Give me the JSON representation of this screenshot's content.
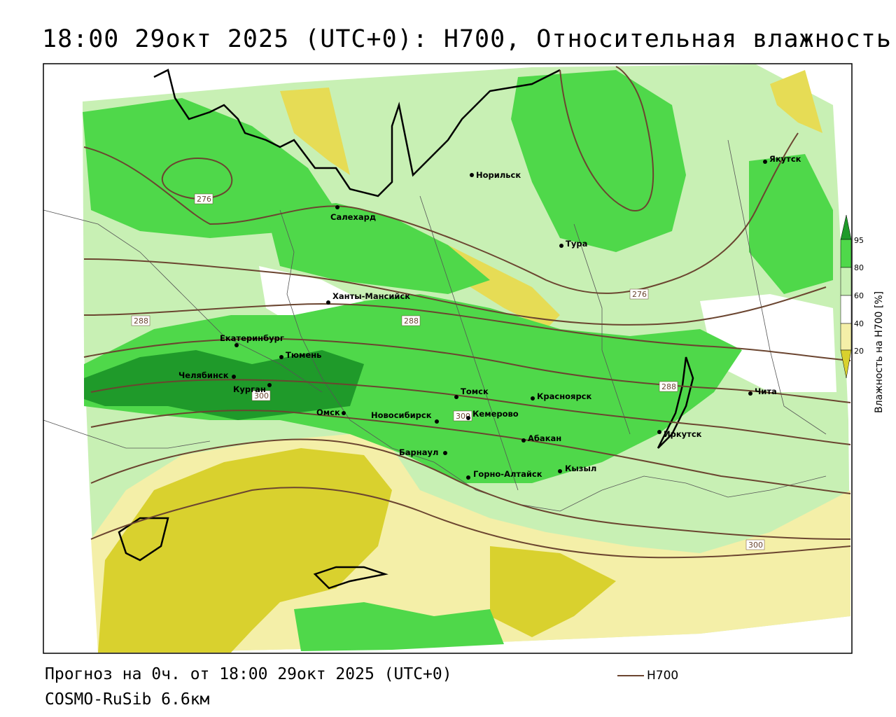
{
  "title": "18:00 29окт 2025 (UTC+0): H700, Относительная влажность",
  "footer": {
    "forecast": "Прогноз на 0ч. от 18:00 29окт 2025 (UTC+0)",
    "model": "COSMO-RuSib 6.6км"
  },
  "legend": {
    "line_label": "H700",
    "line_color": "#6b4530"
  },
  "colorbar": {
    "title": "Влажность на H700 [%]",
    "ticks": [
      "95",
      "80",
      "60",
      "40",
      "20"
    ],
    "colors": {
      "low": "#d9d12e",
      "pale_low": "#f4efa8",
      "mid": "#ffffff",
      "light_green": "#c8f0b4",
      "green": "#4fd84a",
      "dark_green": "#1f9a2a"
    }
  },
  "cities": [
    {
      "name": "Норильск"
    },
    {
      "name": "Якутск"
    },
    {
      "name": "Салехард"
    },
    {
      "name": "Тура"
    },
    {
      "name": "Ханты-Мансийск"
    },
    {
      "name": "Екатеринбург"
    },
    {
      "name": "Тюмень"
    },
    {
      "name": "Челябинск"
    },
    {
      "name": "Курган"
    },
    {
      "name": "Омск"
    },
    {
      "name": "Новосибирск"
    },
    {
      "name": "Томск"
    },
    {
      "name": "Кемерово"
    },
    {
      "name": "Красноярск"
    },
    {
      "name": "Барнаул"
    },
    {
      "name": "Абакан"
    },
    {
      "name": "Горно-Алтайск"
    },
    {
      "name": "Кызыл"
    },
    {
      "name": "Иркутск"
    },
    {
      "name": "Чита"
    }
  ],
  "contour_labels": [
    "276",
    "276",
    "288",
    "288",
    "288",
    "300",
    "300",
    "300"
  ]
}
